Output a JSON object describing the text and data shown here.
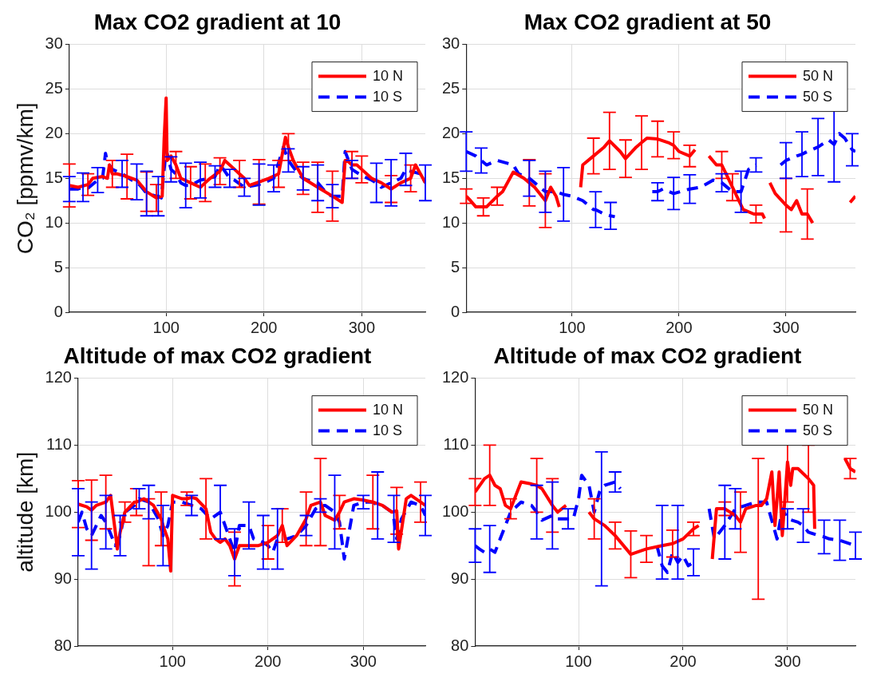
{
  "chart_data": [
    {
      "type": "line",
      "title": "Max CO2 gradient at 10",
      "ylabel": "CO₂ [ppmv/km]",
      "xlim": [
        1,
        365
      ],
      "xticks": [
        100,
        200,
        300
      ],
      "ylim": [
        0,
        30
      ],
      "yticks": [
        0,
        5,
        10,
        15,
        20,
        25,
        30
      ],
      "grid": true,
      "legend": "top right",
      "series": [
        {
          "name": "10 N",
          "color": "#ff0000",
          "line_style": "solid",
          "x": [
            1,
            10,
            20,
            25,
            35,
            40,
            42,
            45,
            50,
            60,
            70,
            80,
            90,
            96,
            98,
            100,
            101,
            105,
            110,
            115,
            125,
            135,
            140,
            145,
            155,
            160,
            170,
            175,
            180,
            185,
            195,
            205,
            215,
            222,
            225,
            230,
            240,
            255,
            270,
            280,
            283,
            285,
            290,
            295,
            300,
            310,
            320,
            330,
            340,
            350,
            355,
            365
          ],
          "values": [
            14.2,
            14,
            14.3,
            15,
            15.2,
            15,
            16.5,
            15.5,
            15.5,
            15.2,
            14.8,
            13.5,
            12.8,
            13,
            19.5,
            24,
            17,
            17.5,
            16.5,
            15,
            14.5,
            14,
            14.5,
            15,
            15.8,
            17,
            16,
            15.5,
            15,
            14.2,
            14.6,
            15,
            15.5,
            19.6,
            18.5,
            17,
            15,
            14,
            13,
            12.3,
            17,
            17,
            16.5,
            16.5,
            16,
            15,
            14.5,
            13.8,
            14.5,
            15,
            16.5,
            14.5
          ],
          "errors": [
            2.4,
            null,
            1.2,
            null,
            null,
            null,
            null,
            1.5,
            null,
            2.5,
            null,
            2.2,
            1.5,
            null,
            null,
            null,
            null,
            null,
            1.5,
            null,
            1.8,
            null,
            2.1,
            null,
            1.5,
            null,
            null,
            1.5,
            null,
            null,
            2.5,
            null,
            1.5,
            null,
            1.5,
            null,
            1.8,
            2.8,
            2.8,
            null,
            null,
            null,
            1.5,
            null,
            1.5,
            null,
            null,
            1.5,
            null,
            1.5,
            null,
            null
          ]
        },
        {
          "name": "10 S",
          "color": "#0000ff",
          "line_style": "dashed",
          "x": [
            1,
            10,
            15,
            20,
            30,
            35,
            38,
            40,
            45,
            55,
            65,
            70,
            75,
            80,
            90,
            92,
            95,
            100,
            105,
            110,
            115,
            120,
            125,
            135,
            145,
            150,
            155,
            160,
            165,
            170,
            180,
            190,
            195,
            200,
            210,
            220,
            225,
            235,
            240,
            245,
            255,
            265,
            270,
            280,
            283,
            290,
            300,
            310,
            315,
            320,
            330,
            340,
            345,
            350,
            360,
            365
          ],
          "values": [
            13.8,
            13.8,
            14,
            13.9,
            14.8,
            15,
            17.8,
            16.8,
            16,
            15.5,
            14.8,
            14.6,
            14,
            13.3,
            13,
            13,
            12.8,
            18.2,
            16,
            15.5,
            14.5,
            14.2,
            14.2,
            14.8,
            15,
            15.2,
            16.5,
            15.8,
            15,
            14.8,
            14,
            14.2,
            14.3,
            14.5,
            15,
            18.5,
            17,
            15.5,
            15,
            14.8,
            14.5,
            13.2,
            13,
            13,
            18,
            16,
            15.3,
            14.8,
            14.5,
            14,
            14.5,
            15,
            16,
            15.8,
            15.5,
            14.5
          ],
          "errors": [
            1.4,
            null,
            1.6,
            null,
            1.4,
            null,
            null,
            null,
            null,
            1.5,
            null,
            2,
            null,
            2.5,
            null,
            2.2,
            null,
            null,
            1.4,
            null,
            null,
            2.5,
            null,
            2,
            null,
            1.2,
            null,
            null,
            1,
            null,
            1,
            null,
            2.3,
            null,
            1.5,
            null,
            1.3,
            null,
            1.3,
            null,
            2,
            null,
            1.3,
            null,
            null,
            1,
            null,
            null,
            2.2,
            null,
            2.6,
            null,
            1.8,
            null,
            null,
            2
          ]
        }
      ]
    },
    {
      "type": "line",
      "title": "Max CO2 gradient at 50",
      "xlim": [
        1,
        365
      ],
      "xticks": [
        100,
        200,
        300
      ],
      "ylim": [
        0,
        30
      ],
      "yticks": [
        0,
        5,
        10,
        15,
        20,
        25,
        30
      ],
      "grid": true,
      "legend": "top right",
      "series": [
        {
          "name": "50 N",
          "color": "#ff0000",
          "line_style": "solid",
          "x": [
            1,
            5,
            10,
            17,
            20,
            30,
            35,
            45,
            55,
            60,
            65,
            75,
            80,
            85,
            88,
            100,
            108,
            110,
            120,
            130,
            135,
            145,
            150,
            160,
            165,
            170,
            180,
            190,
            195,
            200,
            210,
            215,
            222,
            228,
            235,
            240,
            250,
            260,
            270,
            272,
            278,
            280,
            282,
            285,
            290,
            300,
            305,
            310,
            315,
            320,
            325,
            340,
            360,
            365
          ],
          "values": [
            13,
            12.5,
            11.8,
            11.8,
            11.8,
            13,
            13.5,
            15.7,
            15,
            14.5,
            14,
            12.5,
            14,
            13,
            11.8,
            null,
            14,
            16.5,
            17.5,
            18.5,
            19.2,
            18,
            17.2,
            18.5,
            19,
            19.5,
            19.4,
            19,
            18.7,
            18,
            17.5,
            18.2,
            null,
            17.5,
            16.5,
            16.5,
            14,
            11.5,
            11,
            11,
            11,
            10.5,
            null,
            14.5,
            13.3,
            12,
            11.5,
            12.5,
            11,
            11,
            10,
            null,
            12.3,
            13
          ],
          "errors": [
            0.8,
            null,
            null,
            1.0,
            null,
            1.0,
            null,
            null,
            null,
            2.6,
            null,
            3.0,
            null,
            null,
            null,
            null,
            null,
            null,
            2,
            null,
            3.2,
            null,
            2.1,
            null,
            3,
            null,
            2,
            null,
            1.5,
            null,
            1.2,
            null,
            null,
            null,
            null,
            1.5,
            1.5,
            null,
            null,
            1,
            null,
            null,
            null,
            null,
            null,
            3,
            null,
            null,
            null,
            2.8,
            null,
            null,
            null,
            null
          ]
        },
        {
          "name": "50 S",
          "color": "#0000ff",
          "line_style": "dashed",
          "x": [
            1,
            10,
            15,
            20,
            30,
            45,
            50,
            60,
            65,
            75,
            85,
            92,
            100,
            110,
            120,
            122,
            130,
            136,
            140,
            158,
            175,
            180,
            185,
            195,
            210,
            220,
            232,
            240,
            250,
            258,
            265,
            272,
            285,
            295,
            300,
            310,
            315,
            320,
            330,
            340,
            345,
            350,
            355,
            362,
            365
          ],
          "values": [
            18,
            17.5,
            17,
            16.5,
            17,
            16.5,
            15.5,
            15,
            14.5,
            13.5,
            13.5,
            13.2,
            13,
            12.5,
            11.5,
            11.5,
            11,
            10.8,
            10.7,
            null,
            13.5,
            13.5,
            13.8,
            13.3,
            13.8,
            14,
            14.8,
            14.5,
            13.5,
            13.5,
            16,
            16.5,
            null,
            16.5,
            17,
            17.5,
            17.7,
            18,
            18.5,
            19.3,
            18.8,
            20,
            19.5,
            18.2,
            18
          ],
          "errors": [
            2.2,
            null,
            1.4,
            null,
            null,
            null,
            null,
            2,
            null,
            2.3,
            null,
            3,
            null,
            null,
            null,
            2,
            null,
            1.5,
            null,
            null,
            null,
            1,
            null,
            1.8,
            1.6,
            null,
            null,
            1,
            null,
            2.3,
            null,
            0.8,
            null,
            null,
            2,
            null,
            2.5,
            null,
            3.2,
            null,
            [
              14.6,
              26.8
            ],
            null,
            null,
            1.8,
            null
          ]
        }
      ]
    },
    {
      "type": "line",
      "title": "Altitude of max CO2 gradient",
      "ylabel": "altitude [km]",
      "xlim": [
        1,
        365
      ],
      "xticks": [
        100,
        200,
        300
      ],
      "ylim": [
        80,
        120
      ],
      "yticks": [
        80,
        90,
        100,
        110,
        120
      ],
      "grid": true,
      "legend": "top right",
      "series": [
        {
          "name": "10 N",
          "color": "#ff0000",
          "line_style": "solid",
          "x": [
            1,
            10,
            15,
            20,
            30,
            35,
            40,
            42,
            45,
            50,
            60,
            62,
            70,
            75,
            80,
            88,
            90,
            95,
            98,
            100,
            110,
            115,
            120,
            125,
            135,
            140,
            145,
            150,
            155,
            160,
            165,
            170,
            180,
            190,
            200,
            210,
            215,
            220,
            230,
            240,
            245,
            255,
            260,
            270,
            275,
            280,
            290,
            300,
            310,
            320,
            330,
            335,
            337,
            345,
            350,
            360,
            365
          ],
          "values": [
            101.2,
            100.8,
            100.3,
            101,
            101.5,
            102.5,
            97,
            94.5,
            97,
            100,
            101.5,
            101.5,
            102,
            101.5,
            101,
            99,
            98,
            96,
            91.2,
            102.5,
            102,
            102,
            102.2,
            102,
            100.5,
            97,
            96,
            95.5,
            96,
            95,
            93,
            95,
            95,
            95,
            95.5,
            96.5,
            98,
            95,
            96.5,
            99,
            101,
            101.5,
            99.5,
            98.8,
            100,
            101.5,
            102,
            101.8,
            101.5,
            101,
            100,
            100.2,
            94.5,
            102,
            102.5,
            101.5,
            101
          ],
          "errors": [
            3.5,
            null,
            4.5,
            null,
            4,
            null,
            null,
            null,
            null,
            1.5,
            null,
            2,
            null,
            [
              92,
              102
            ],
            null,
            4,
            null,
            null,
            null,
            null,
            null,
            1,
            null,
            null,
            4.5,
            null,
            null,
            null,
            null,
            null,
            4,
            null,
            null,
            null,
            2.5,
            null,
            2.5,
            null,
            null,
            4,
            null,
            6.5,
            null,
            null,
            2.5,
            null,
            null,
            null,
            4,
            null,
            null,
            3.5,
            null,
            null,
            null,
            3,
            null
          ]
        },
        {
          "name": "10 S",
          "color": "#0000ff",
          "line_style": "dashed",
          "x": [
            1,
            5,
            10,
            15,
            20,
            25,
            30,
            40,
            45,
            50,
            60,
            65,
            75,
            85,
            90,
            95,
            100,
            110,
            120,
            130,
            140,
            150,
            160,
            165,
            170,
            180,
            185,
            195,
            200,
            205,
            210,
            220,
            230,
            240,
            250,
            255,
            260,
            270,
            275,
            280,
            290,
            300,
            310,
            315,
            320,
            330,
            332,
            335,
            340,
            350,
            360,
            365
          ],
          "values": [
            98.5,
            100,
            97.5,
            96.5,
            98,
            99.5,
            98.5,
            95,
            96.5,
            100,
            101,
            102,
            101.5,
            99,
            96.5,
            98,
            101.5,
            101.5,
            101,
            100.5,
            99,
            100,
            96,
            94,
            98,
            98,
            96,
            95.5,
            95,
            94,
            96,
            96,
            96.5,
            98,
            100.5,
            101,
            101,
            100,
            98.5,
            93,
            101,
            101.5,
            101.5,
            101,
            101,
            100,
            99,
            96,
            99,
            101.5,
            101,
            99.5
          ],
          "errors": [
            5,
            null,
            null,
            5,
            null,
            null,
            4,
            null,
            3,
            null,
            null,
            1.5,
            2.5,
            null,
            4.5,
            null,
            null,
            null,
            1.5,
            null,
            null,
            4,
            null,
            3.5,
            null,
            3.5,
            null,
            4,
            null,
            null,
            4.5,
            null,
            null,
            1.5,
            null,
            1,
            null,
            5.5,
            null,
            null,
            null,
            1,
            null,
            5,
            null,
            null,
            3.5,
            null,
            null,
            null,
            null,
            3
          ]
        }
      ]
    },
    {
      "type": "line",
      "title": "Altitude of max CO2 gradient",
      "xlim": [
        1,
        365
      ],
      "xticks": [
        100,
        200,
        300
      ],
      "ylim": [
        80,
        120
      ],
      "yticks": [
        80,
        90,
        100,
        110,
        120
      ],
      "grid": true,
      "legend": "top right",
      "series": [
        {
          "name": "50 N",
          "color": "#ff0000",
          "line_style": "solid",
          "x": [
            1,
            10,
            15,
            20,
            25,
            30,
            35,
            45,
            55,
            60,
            65,
            75,
            80,
            88,
            100,
            110,
            115,
            125,
            135,
            150,
            165,
            180,
            190,
            200,
            210,
            215,
            222,
            228,
            232,
            240,
            250,
            255,
            260,
            270,
            272,
            275,
            280,
            285,
            288,
            292,
            295,
            300,
            303,
            305,
            310,
            320,
            325,
            326,
            340,
            355,
            360,
            365
          ],
          "values": [
            103,
            105,
            105.5,
            104,
            103.5,
            101,
            100.5,
            104.5,
            104.2,
            104,
            103.5,
            101,
            100,
            101,
            null,
            100,
            99,
            98,
            96.5,
            93.7,
            94.5,
            95,
            95.3,
            96,
            97.5,
            98,
            null,
            93,
            100.5,
            100.5,
            99.5,
            98.5,
            100.5,
            101,
            101,
            101,
            102,
            106,
            98,
            106,
            96.5,
            107.5,
            104,
            106.5,
            106.5,
            105,
            104,
            97.5,
            null,
            108,
            106.5,
            106
          ],
          "errors": [
            2,
            null,
            4.5,
            null,
            null,
            null,
            1.5,
            null,
            null,
            4,
            null,
            4,
            null,
            null,
            null,
            null,
            3,
            null,
            2,
            3.5,
            2,
            null,
            2,
            null,
            1,
            null,
            null,
            null,
            null,
            1,
            null,
            4.5,
            null,
            null,
            [
              87,
              108
            ],
            null,
            null,
            null,
            null,
            null,
            null,
            6,
            null,
            null,
            null,
            5,
            null,
            null,
            null,
            null,
            1.5,
            null
          ]
        },
        {
          "name": "50 S",
          "color": "#0000ff",
          "line_style": "dashed",
          "x": [
            1,
            5,
            10,
            15,
            20,
            25,
            30,
            35,
            45,
            55,
            60,
            65,
            75,
            80,
            90,
            95,
            100,
            103,
            110,
            115,
            120,
            122,
            125,
            135,
            140,
            158,
            175,
            180,
            185,
            190,
            195,
            200,
            205,
            210,
            218,
            225,
            230,
            240,
            250,
            260,
            270,
            272,
            280,
            290,
            295,
            300,
            310,
            315,
            320,
            330,
            335,
            340,
            350,
            365
          ],
          "values": [
            95,
            94.5,
            94,
            94.5,
            94,
            96,
            98,
            100,
            101.5,
            101,
            100,
            98.8,
            99.5,
            99,
            99,
            99,
            102,
            105.5,
            104,
            100,
            103,
            103.5,
            104,
            104.5,
            103.5,
            null,
            95,
            92,
            91,
            94,
            92.5,
            93.5,
            92,
            92.5,
            null,
            100.5,
            96,
            98,
            100.5,
            101,
            101.5,
            101.5,
            101.5,
            96,
            100.5,
            99,
            98.5,
            98,
            97,
            96.5,
            96.3,
            96,
            95.8,
            95
          ],
          "errors": [
            2.5,
            null,
            null,
            3.5,
            null,
            null,
            null,
            null,
            null,
            null,
            4,
            null,
            5,
            null,
            1.5,
            null,
            null,
            null,
            null,
            null,
            null,
            [
              89,
              109
            ],
            null,
            1.5,
            null,
            null,
            null,
            [
              90,
              101
            ],
            null,
            null,
            [
              90,
              101
            ],
            null,
            null,
            2,
            null,
            null,
            null,
            [
              93,
              104
            ],
            3,
            null,
            null,
            null,
            null,
            null,
            null,
            1.5,
            null,
            2.5,
            null,
            null,
            2.5,
            null,
            3,
            2
          ]
        }
      ]
    }
  ]
}
